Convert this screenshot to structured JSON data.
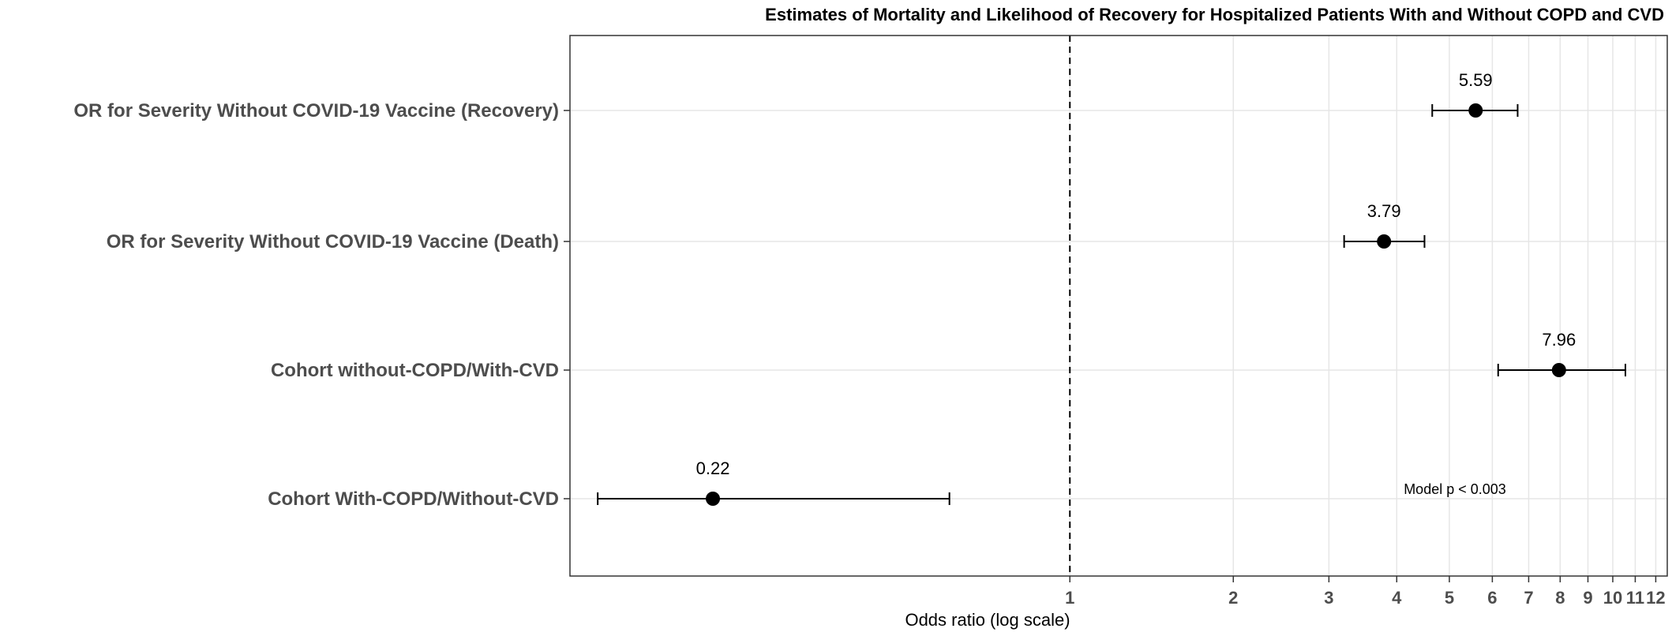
{
  "chart_data": {
    "type": "forest",
    "title": "Estimates of Mortality and Likelihood of Recovery for Hospitalized Patients With and Without COPD and CVD",
    "xlabel": "Odds ratio (log scale)",
    "x_scale": "log",
    "xlim": [
      0.12,
      12.6
    ],
    "x_ticks": [
      1,
      2,
      3,
      4,
      5,
      6,
      7,
      8,
      9,
      10,
      11,
      12
    ],
    "x_tick_labels": [
      "1",
      "2",
      "3",
      "4",
      "5",
      "6",
      "7",
      "8",
      "9",
      "10",
      "11",
      "12"
    ],
    "reference_line": 1,
    "grid": true,
    "rows": [
      {
        "label": "OR for Severity Without COVID-19 Vaccine (Recovery)",
        "estimate": 5.59,
        "estimate_label": "5.59",
        "lower": 4.65,
        "upper": 6.68
      },
      {
        "label": "OR for Severity Without COVID-19 Vaccine (Death)",
        "estimate": 3.79,
        "estimate_label": "3.79",
        "lower": 3.2,
        "upper": 4.5
      },
      {
        "label": "Cohort without-COPD/With-CVD",
        "estimate": 7.96,
        "estimate_label": "7.96",
        "lower": 6.15,
        "upper": 10.55
      },
      {
        "label": "Cohort With-COPD/Without-CVD",
        "estimate": 0.22,
        "estimate_label": "0.22",
        "lower": 0.135,
        "upper": 0.6
      }
    ],
    "annotation": "Model p < 0.003"
  }
}
